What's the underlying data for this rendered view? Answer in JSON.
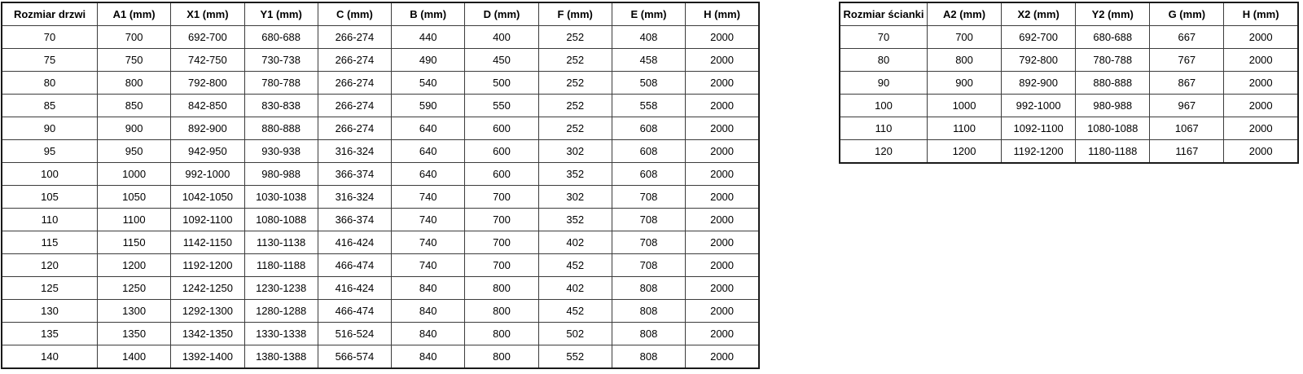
{
  "page": {
    "background_color": "#ffffff",
    "text_color": "#000000",
    "border_color": "#3c3c3c",
    "outer_border_color": "#1a1a1a"
  },
  "tables": [
    {
      "name": "door-size-table",
      "headers": [
        "Rozmiar drzwi",
        "A1 (mm)",
        "X1 (mm)",
        "Y1 (mm)",
        "C (mm)",
        "B (mm)",
        "D (mm)",
        "F (mm)",
        "E (mm)",
        "H (mm)"
      ],
      "rows": [
        [
          "70",
          "700",
          "692-700",
          "680-688",
          "266-274",
          "440",
          "400",
          "252",
          "408",
          "2000"
        ],
        [
          "75",
          "750",
          "742-750",
          "730-738",
          "266-274",
          "490",
          "450",
          "252",
          "458",
          "2000"
        ],
        [
          "80",
          "800",
          "792-800",
          "780-788",
          "266-274",
          "540",
          "500",
          "252",
          "508",
          "2000"
        ],
        [
          "85",
          "850",
          "842-850",
          "830-838",
          "266-274",
          "590",
          "550",
          "252",
          "558",
          "2000"
        ],
        [
          "90",
          "900",
          "892-900",
          "880-888",
          "266-274",
          "640",
          "600",
          "252",
          "608",
          "2000"
        ],
        [
          "95",
          "950",
          "942-950",
          "930-938",
          "316-324",
          "640",
          "600",
          "302",
          "608",
          "2000"
        ],
        [
          "100",
          "1000",
          "992-1000",
          "980-988",
          "366-374",
          "640",
          "600",
          "352",
          "608",
          "2000"
        ],
        [
          "105",
          "1050",
          "1042-1050",
          "1030-1038",
          "316-324",
          "740",
          "700",
          "302",
          "708",
          "2000"
        ],
        [
          "110",
          "1100",
          "1092-1100",
          "1080-1088",
          "366-374",
          "740",
          "700",
          "352",
          "708",
          "2000"
        ],
        [
          "115",
          "1150",
          "1142-1150",
          "1130-1138",
          "416-424",
          "740",
          "700",
          "402",
          "708",
          "2000"
        ],
        [
          "120",
          "1200",
          "1192-1200",
          "1180-1188",
          "466-474",
          "740",
          "700",
          "452",
          "708",
          "2000"
        ],
        [
          "125",
          "1250",
          "1242-1250",
          "1230-1238",
          "416-424",
          "840",
          "800",
          "402",
          "808",
          "2000"
        ],
        [
          "130",
          "1300",
          "1292-1300",
          "1280-1288",
          "466-474",
          "840",
          "800",
          "452",
          "808",
          "2000"
        ],
        [
          "135",
          "1350",
          "1342-1350",
          "1330-1338",
          "516-524",
          "840",
          "800",
          "502",
          "808",
          "2000"
        ],
        [
          "140",
          "1400",
          "1392-1400",
          "1380-1388",
          "566-574",
          "840",
          "800",
          "552",
          "808",
          "2000"
        ]
      ]
    },
    {
      "name": "wall-size-table",
      "headers": [
        "Rozmiar ścianki",
        "A2 (mm)",
        "X2 (mm)",
        "Y2 (mm)",
        "G (mm)",
        "H (mm)"
      ],
      "rows": [
        [
          "70",
          "700",
          "692-700",
          "680-688",
          "667",
          "2000"
        ],
        [
          "80",
          "800",
          "792-800",
          "780-788",
          "767",
          "2000"
        ],
        [
          "90",
          "900",
          "892-900",
          "880-888",
          "867",
          "2000"
        ],
        [
          "100",
          "1000",
          "992-1000",
          "980-988",
          "967",
          "2000"
        ],
        [
          "110",
          "1100",
          "1092-1100",
          "1080-1088",
          "1067",
          "2000"
        ],
        [
          "120",
          "1200",
          "1192-1200",
          "1180-1188",
          "1167",
          "2000"
        ]
      ]
    }
  ]
}
